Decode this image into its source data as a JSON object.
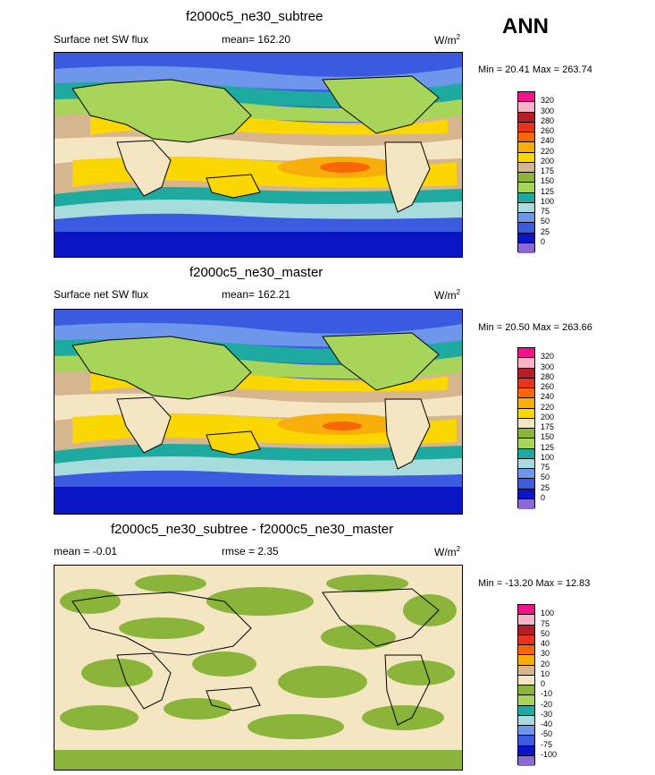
{
  "season": "ANN",
  "colors": {
    "sw": [
      "#8a6ad0",
      "#0a16c4",
      "#3a5ae0",
      "#6e96ea",
      "#a8dcdc",
      "#1eaaa0",
      "#a6d55a",
      "#8ab43a",
      "#f5e6c3",
      "#d6b68e",
      "#fad700",
      "#f7ad0a",
      "#f86606",
      "#e8341e",
      "#b41e28",
      "#f8b4c6",
      "#f2128a"
    ],
    "diff": [
      "#8a6ad0",
      "#0a16c4",
      "#3a5ae0",
      "#6e96ea",
      "#a8dcdc",
      "#1eaaa0",
      "#a6d55a",
      "#8ab43a",
      "#f5e6c3",
      "#d6b68e",
      "#fad700",
      "#f7ad0a",
      "#f86606",
      "#e8341e",
      "#b41e28",
      "#f8b4c6",
      "#f2128a"
    ]
  },
  "panels": [
    {
      "title": "f2000c5_ne30_subtree",
      "left_label": "Surface net SW flux",
      "mean_text": "mean= 162.20",
      "units": "W/m",
      "units_exp": "2",
      "minmax": "Min =  20.41 Max = 263.74",
      "levels": [
        "320",
        "300",
        "280",
        "260",
        "240",
        "220",
        "200",
        "175",
        "150",
        "125",
        "100",
        "75",
        "50",
        "25",
        "0"
      ]
    },
    {
      "title": "f2000c5_ne30_master",
      "left_label": "Surface net SW flux",
      "mean_text": "mean= 162.21",
      "units": "W/m",
      "units_exp": "2",
      "minmax": "Min =  20.50 Max = 263.66",
      "levels": [
        "320",
        "300",
        "280",
        "260",
        "240",
        "220",
        "200",
        "175",
        "150",
        "125",
        "100",
        "75",
        "50",
        "25",
        "0"
      ]
    },
    {
      "title": "f2000c5_ne30_subtree - f2000c5_ne30_master",
      "left_label": "mean =  -0.01",
      "mean_text": "rmse =   2.35",
      "units": "W/m",
      "units_exp": "2",
      "minmax": "Min = -13.20 Max =  12.83",
      "levels": [
        "100",
        "75",
        "50",
        "40",
        "30",
        "20",
        "10",
        "0",
        "-10",
        "-20",
        "-30",
        "-40",
        "-50",
        "-75",
        "-100"
      ]
    }
  ]
}
